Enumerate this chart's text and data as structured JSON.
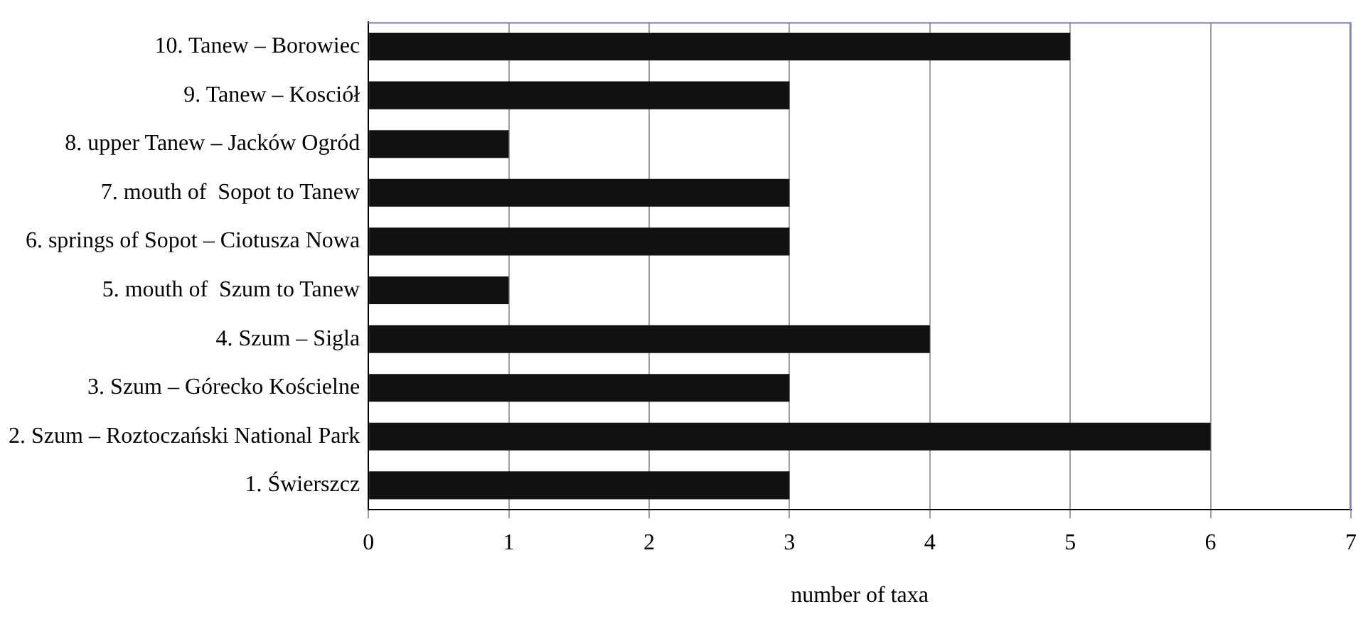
{
  "chart_data": {
    "type": "bar",
    "orientation": "horizontal",
    "xlabel": "number of taxa",
    "categories": [
      "10. Tanew – Borowiec",
      "9. Tanew – Kosciół",
      "8. upper Tanew – Jacków Ogród",
      "7. mouth of  Sopot to Tanew",
      "6. springs of Sopot – Ciotusza Nowa",
      "5. mouth of  Szum to Tanew",
      "4. Szum – Sigla",
      "3. Szum – Górecko Kościelne",
      "2. Szum – Roztoczański National Park",
      "1. Świerszcz"
    ],
    "values": [
      5,
      3,
      1,
      3,
      3,
      1,
      4,
      3,
      6,
      3
    ],
    "color": "#111111",
    "xlim": [
      0,
      7
    ],
    "xticks": [
      0,
      1,
      2,
      3,
      4,
      5,
      6,
      7
    ],
    "grid": "x",
    "legend": false
  }
}
